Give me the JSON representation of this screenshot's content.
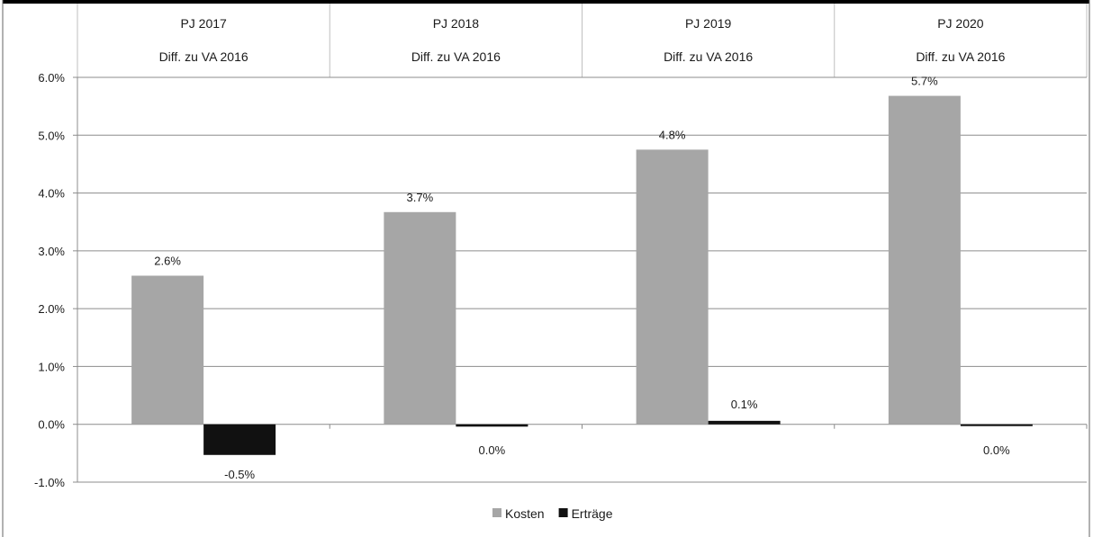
{
  "chart_data": {
    "type": "bar",
    "title": "",
    "xlabel": "",
    "ylabel": "",
    "categories": [
      "PJ 2017",
      "PJ 2018",
      "PJ 2019",
      "PJ 2020"
    ],
    "subheaders": [
      "Diff. zu VA 2016",
      "Diff. zu VA 2016",
      "Diff. zu VA 2016",
      "Diff. zu VA 2016"
    ],
    "series": [
      {
        "name": "Kosten",
        "color": "#a6a6a6",
        "values": [
          2.57,
          3.67,
          4.75,
          5.68
        ],
        "labels": [
          "2.6%",
          "3.7%",
          "4.8%",
          "5.7%"
        ]
      },
      {
        "name": "Erträge",
        "color": "#111111",
        "values": [
          -0.53,
          -0.04,
          0.06,
          -0.02
        ],
        "labels": [
          "-0.5%",
          "0.0%",
          "0.1%",
          "0.0%"
        ]
      }
    ],
    "ylim": [
      -1,
      6
    ],
    "yticks": [
      "-1.0%",
      "0.0%",
      "1.0%",
      "2.0%",
      "3.0%",
      "4.0%",
      "5.0%",
      "6.0%"
    ],
    "grid": true,
    "legend_position": "bottom"
  }
}
